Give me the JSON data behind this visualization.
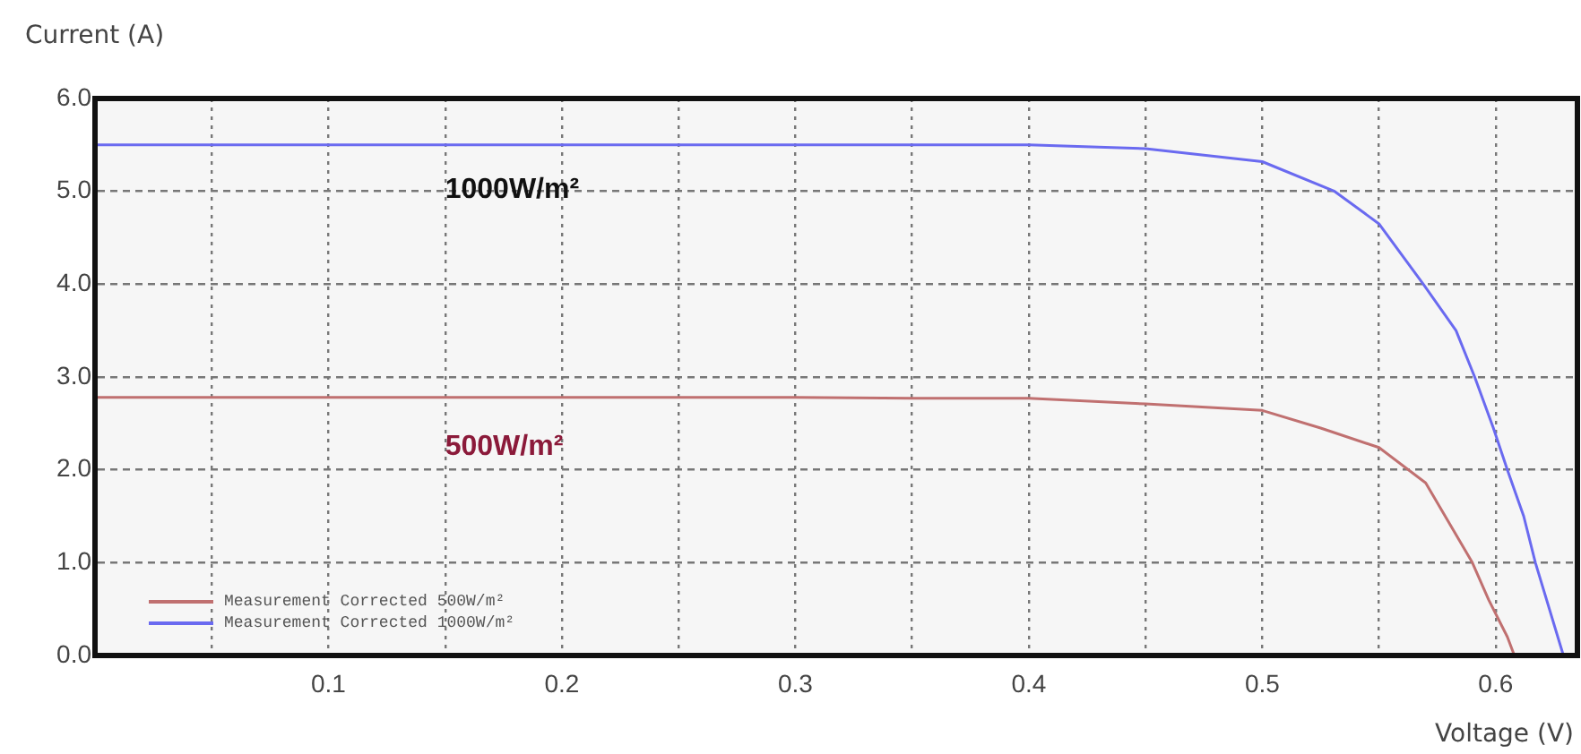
{
  "chart_data": {
    "type": "line",
    "xlabel": "Voltage (V)",
    "ylabel": "Current (A)",
    "xlim": [
      0,
      0.635
    ],
    "ylim": [
      0,
      6
    ],
    "xticks": [
      {
        "value": 0.05,
        "label": null
      },
      0.1,
      {
        "value": 0.15,
        "label": null
      },
      0.2,
      {
        "value": 0.25,
        "label": null
      },
      0.3,
      {
        "value": 0.35,
        "label": null
      },
      0.4,
      {
        "value": 0.45,
        "label": null
      },
      0.5,
      {
        "value": 0.55,
        "label": null
      },
      0.6
    ],
    "yticks": [
      {
        "value": 0,
        "label": "0.0"
      },
      {
        "value": 1,
        "label": "1.0"
      },
      {
        "value": 2,
        "label": "2.0"
      },
      {
        "value": 3,
        "label": "3.0"
      },
      {
        "value": 4,
        "label": "4.0"
      },
      {
        "value": 5,
        "label": "5.0"
      },
      {
        "value": 6,
        "label": "6.0"
      }
    ],
    "grid": true,
    "legend": "bottom left",
    "marker": "none",
    "line_style": "solid",
    "annotations": [
      {
        "text": "1000W/m²",
        "x": 0.15,
        "y": 5.5
      },
      {
        "text": "500W/m²",
        "x": 0.15,
        "y": 2.77
      }
    ],
    "series": [
      {
        "name": "Measurement Corrected 500W/m²",
        "color": "#c07070",
        "x": [
          0,
          0.1,
          0.2,
          0.3,
          0.35,
          0.4,
          0.45,
          0.5,
          0.525,
          0.55,
          0.57,
          0.58,
          0.59,
          0.597,
          0.605,
          0.608
        ],
        "values": [
          2.78,
          2.78,
          2.78,
          2.78,
          2.77,
          2.77,
          2.71,
          2.64,
          2.45,
          2.24,
          1.86,
          1.43,
          1.0,
          0.6,
          0.2,
          0
        ]
      },
      {
        "name": "Measurement Corrected 1000W/m²",
        "color": "#6a6af0",
        "x": [
          0,
          0.1,
          0.2,
          0.3,
          0.35,
          0.4,
          0.45,
          0.5,
          0.531,
          0.55,
          0.569,
          0.583,
          0.591,
          0.599,
          0.605,
          0.612,
          0.617,
          0.629
        ],
        "values": [
          5.5,
          5.5,
          5.5,
          5.5,
          5.5,
          5.5,
          5.46,
          5.32,
          5.0,
          4.65,
          4.0,
          3.5,
          3.0,
          2.45,
          2.0,
          1.5,
          1.0,
          0
        ]
      }
    ]
  }
}
